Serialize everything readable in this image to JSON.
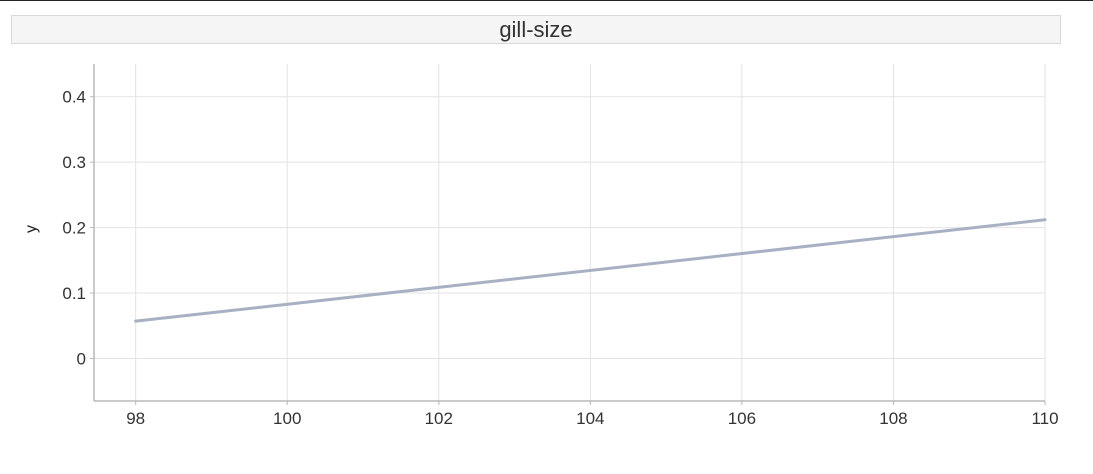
{
  "chart_data": {
    "type": "line",
    "title": "gill-size",
    "xlabel": "",
    "ylabel": "y",
    "xlim": [
      97.45,
      110
    ],
    "ylim": [
      -0.065,
      0.45
    ],
    "xticks": [
      98,
      100,
      102,
      104,
      106,
      108,
      110
    ],
    "yticks": [
      0,
      0.1,
      0.2,
      0.3,
      0.4
    ],
    "grid": true,
    "series": [
      {
        "x": [
          98,
          110
        ],
        "y": [
          0.057,
          0.212
        ]
      }
    ],
    "colors": {
      "line": "#a8b0c4",
      "grid": "#e3e3e3",
      "axis": "#b8b8b8"
    }
  }
}
